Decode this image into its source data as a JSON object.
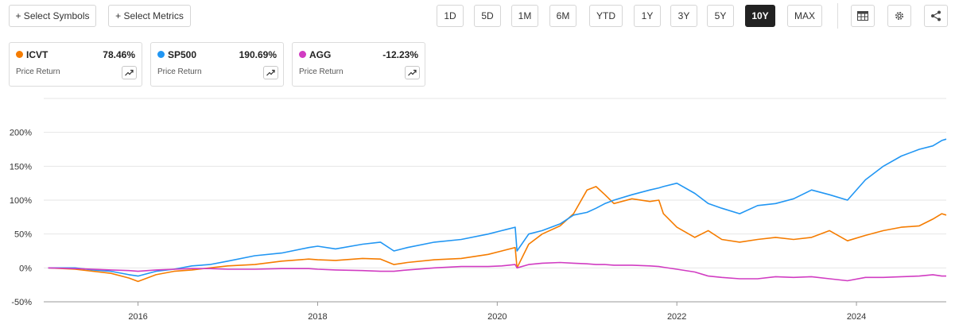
{
  "toolbar": {
    "select_symbols": "+ Select Symbols",
    "select_metrics": "+ Select Metrics",
    "periods": [
      "1D",
      "5D",
      "1M",
      "6M",
      "YTD",
      "1Y",
      "3Y",
      "5Y",
      "10Y",
      "MAX"
    ],
    "active_period": "10Y",
    "icons": [
      "table-icon",
      "gear-icon",
      "share-icon"
    ]
  },
  "legend_cards": [
    {
      "symbol": "ICVT",
      "return": "78.46%",
      "metric": "Price Return",
      "color": "#f57c00"
    },
    {
      "symbol": "SP500",
      "return": "190.69%",
      "metric": "Price Return",
      "color": "#2196f3"
    },
    {
      "symbol": "AGG",
      "return": "-12.23%",
      "metric": "Price Return",
      "color": "#d13cc2"
    }
  ],
  "chart_data": {
    "type": "line",
    "title": "",
    "xlabel": "",
    "ylabel": "",
    "xlim": [
      2014.95,
      2025.0
    ],
    "ylim": [
      -50,
      250
    ],
    "y_ticks": [
      -50,
      0,
      50,
      100,
      150,
      200
    ],
    "y_tick_labels": [
      "-50%",
      "0%",
      "50%",
      "100%",
      "150%",
      "200%"
    ],
    "x_ticks": [
      2016,
      2018,
      2020,
      2022,
      2024
    ],
    "x_tick_labels": [
      "2016",
      "2018",
      "2020",
      "2022",
      "2024"
    ],
    "grid": "horizontal",
    "series": [
      {
        "name": "ICVT",
        "color": "#f57c00",
        "x": [
          2015.0,
          2015.3,
          2015.5,
          2015.7,
          2015.9,
          2016.0,
          2016.2,
          2016.4,
          2016.6,
          2016.8,
          2017.0,
          2017.3,
          2017.6,
          2017.9,
          2018.0,
          2018.2,
          2018.5,
          2018.7,
          2018.85,
          2019.0,
          2019.3,
          2019.6,
          2019.9,
          2020.05,
          2020.2,
          2020.22,
          2020.35,
          2020.5,
          2020.7,
          2020.85,
          2021.0,
          2021.1,
          2021.2,
          2021.3,
          2021.5,
          2021.7,
          2021.8,
          2021.85,
          2022.0,
          2022.2,
          2022.35,
          2022.5,
          2022.7,
          2022.9,
          2023.1,
          2023.3,
          2023.5,
          2023.7,
          2023.9,
          2024.1,
          2024.3,
          2024.5,
          2024.7,
          2024.85,
          2024.95,
          2025.0
        ],
        "y": [
          0,
          -2,
          -5,
          -8,
          -15,
          -20,
          -10,
          -5,
          -3,
          0,
          3,
          5,
          10,
          13,
          12,
          11,
          14,
          13,
          5,
          8,
          12,
          14,
          20,
          25,
          30,
          0,
          35,
          50,
          62,
          80,
          115,
          120,
          108,
          95,
          102,
          98,
          100,
          80,
          60,
          45,
          55,
          42,
          38,
          42,
          45,
          42,
          45,
          55,
          40,
          48,
          55,
          60,
          62,
          72,
          80,
          78
        ]
      },
      {
        "name": "SP500",
        "color": "#2196f3",
        "x": [
          2015.0,
          2015.3,
          2015.5,
          2015.7,
          2015.9,
          2016.0,
          2016.2,
          2016.4,
          2016.6,
          2016.8,
          2017.0,
          2017.3,
          2017.6,
          2017.9,
          2018.0,
          2018.2,
          2018.5,
          2018.7,
          2018.85,
          2019.0,
          2019.3,
          2019.6,
          2019.9,
          2020.05,
          2020.2,
          2020.22,
          2020.35,
          2020.5,
          2020.7,
          2020.85,
          2021.0,
          2021.1,
          2021.2,
          2021.3,
          2021.5,
          2021.7,
          2021.8,
          2021.85,
          2022.0,
          2022.2,
          2022.35,
          2022.5,
          2022.7,
          2022.9,
          2023.1,
          2023.3,
          2023.5,
          2023.7,
          2023.9,
          2024.1,
          2024.3,
          2024.5,
          2024.7,
          2024.85,
          2024.95,
          2025.0
        ],
        "y": [
          0,
          0,
          -3,
          -5,
          -10,
          -12,
          -5,
          -2,
          3,
          5,
          10,
          18,
          22,
          30,
          32,
          28,
          35,
          38,
          25,
          30,
          38,
          42,
          50,
          55,
          60,
          25,
          50,
          55,
          65,
          78,
          82,
          88,
          95,
          100,
          108,
          115,
          118,
          120,
          125,
          110,
          95,
          88,
          80,
          92,
          95,
          102,
          115,
          108,
          100,
          130,
          150,
          165,
          175,
          180,
          188,
          190
        ]
      },
      {
        "name": "AGG",
        "color": "#d13cc2",
        "x": [
          2015.0,
          2015.3,
          2015.5,
          2015.7,
          2015.9,
          2016.0,
          2016.2,
          2016.4,
          2016.6,
          2016.8,
          2017.0,
          2017.3,
          2017.6,
          2017.9,
          2018.0,
          2018.2,
          2018.5,
          2018.7,
          2018.85,
          2019.0,
          2019.3,
          2019.6,
          2019.9,
          2020.05,
          2020.2,
          2020.22,
          2020.35,
          2020.5,
          2020.7,
          2020.85,
          2021.0,
          2021.1,
          2021.2,
          2021.3,
          2021.5,
          2021.7,
          2021.8,
          2021.85,
          2022.0,
          2022.2,
          2022.35,
          2022.5,
          2022.7,
          2022.9,
          2023.1,
          2023.3,
          2023.5,
          2023.7,
          2023.9,
          2024.1,
          2024.3,
          2024.5,
          2024.7,
          2024.85,
          2024.95,
          2025.0
        ],
        "y": [
          0,
          -1,
          -2,
          -3,
          -4,
          -5,
          -3,
          -2,
          -1,
          -1,
          -2,
          -2,
          -1,
          -1,
          -2,
          -3,
          -4,
          -5,
          -5,
          -3,
          0,
          2,
          2,
          3,
          5,
          0,
          5,
          7,
          8,
          7,
          6,
          5,
          5,
          4,
          4,
          3,
          2,
          1,
          -2,
          -6,
          -12,
          -14,
          -16,
          -16,
          -13,
          -14,
          -13,
          -16,
          -19,
          -14,
          -14,
          -13,
          -12,
          -10,
          -12,
          -12
        ]
      }
    ]
  }
}
